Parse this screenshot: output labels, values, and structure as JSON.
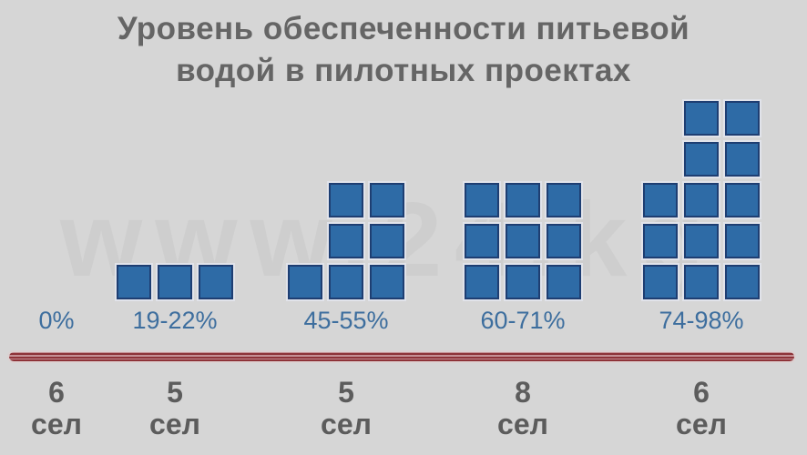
{
  "page": {
    "background_color": "#d6d6d6",
    "watermark_text": "www.24.kg"
  },
  "title": {
    "line1": "Уровень обеспеченности питьевой",
    "line2": "водой в пилотных проектах",
    "full": "Уровень обеспеченности питьевой водой в пилотных проектах"
  },
  "colors": {
    "background": "#d6d6d6",
    "title_text": "#656565",
    "square_fill": "#2e6ba6",
    "square_border": "#1e3e72",
    "percent_text": "#3d6e9e",
    "divider_red": "#8e3338",
    "villages_text": "#5c5c5c",
    "watermark_text": "#c9c9c9"
  },
  "chart_data": {
    "type": "pictogram",
    "title": "Уровень обеспеченности питьевой водой в пилотных проектах",
    "legend_position": "none",
    "grid": false,
    "unit_shape": "blue-square",
    "total_squares": 32,
    "groups": [
      {
        "percent_label": "0%",
        "squares": 0,
        "rows": [],
        "villages_count": "6",
        "villages_unit": "сел"
      },
      {
        "percent_label": "19-22%",
        "squares": 3,
        "rows": [
          3
        ],
        "villages_count": "5",
        "villages_unit": "сел"
      },
      {
        "percent_label": "45-55%",
        "squares": 7,
        "rows": [
          2,
          2,
          3
        ],
        "villages_count": "5",
        "villages_unit": "сел"
      },
      {
        "percent_label": "60-71%",
        "squares": 9,
        "rows": [
          3,
          3,
          3
        ],
        "villages_count": "8",
        "villages_unit": "сел"
      },
      {
        "percent_label": "74-98%",
        "squares": 13,
        "rows": [
          2,
          2,
          3,
          3,
          3
        ],
        "villages_count": "6",
        "villages_unit": "сел"
      }
    ]
  }
}
